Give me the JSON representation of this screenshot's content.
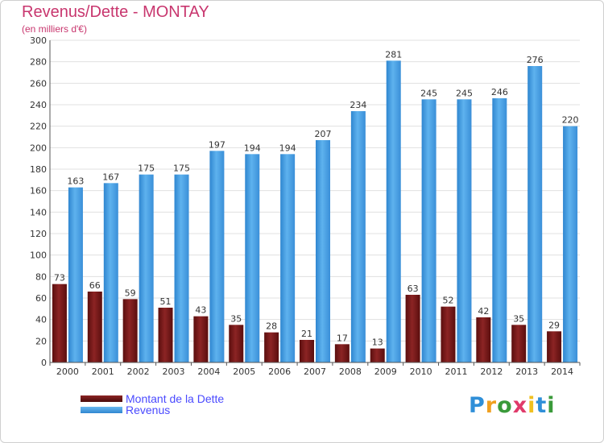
{
  "header": {
    "title": "Revenus/Dette - MONTAY",
    "subtitle": "(en milliers d'€)"
  },
  "colors": {
    "dette": "#7a1a1a",
    "revenus": "#4a9fe0",
    "title": "#c8366e",
    "legend_text": "#4a4aff"
  },
  "chart_data": {
    "type": "bar",
    "title": "Revenus/Dette - MONTAY",
    "subtitle": "(en milliers d'€)",
    "categories": [
      "2000",
      "2001",
      "2002",
      "2003",
      "2004",
      "2005",
      "2006",
      "2007",
      "2008",
      "2009",
      "2010",
      "2011",
      "2012",
      "2013",
      "2014"
    ],
    "series": [
      {
        "name": "Montant de la Dette",
        "color": "#7a1a1a",
        "values": [
          73,
          66,
          59,
          51,
          43,
          35,
          28,
          21,
          17,
          13,
          63,
          52,
          42,
          35,
          29
        ]
      },
      {
        "name": "Revenus",
        "color": "#4a9fe0",
        "values": [
          163,
          167,
          175,
          175,
          197,
          194,
          194,
          207,
          234,
          281,
          245,
          245,
          246,
          276,
          220
        ]
      }
    ],
    "ylim": [
      0,
      300
    ],
    "yticks": [
      "0",
      "20",
      "40",
      "60",
      "80",
      "100",
      "120",
      "140",
      "160",
      "180",
      "200",
      "220",
      "240",
      "260",
      "280",
      "300"
    ],
    "grid": true,
    "legend_position": "bottom-left"
  },
  "legend": {
    "dette_label": "Montant de la Dette",
    "revenus_label": "Revenus"
  },
  "logo": {
    "text": "Proxiti",
    "letters": [
      "P",
      "r",
      "o",
      "x",
      "i",
      "t",
      "i"
    ]
  }
}
